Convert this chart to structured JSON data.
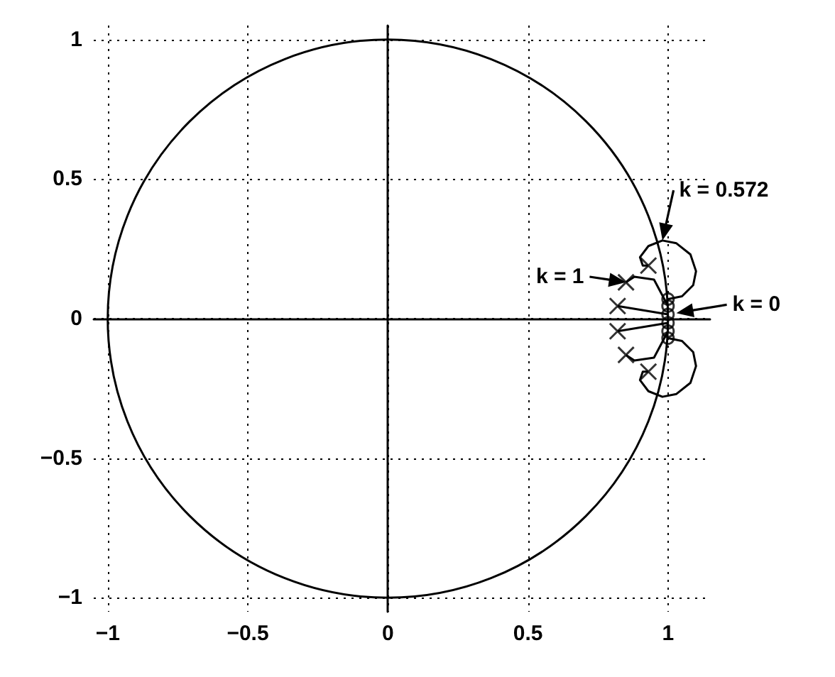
{
  "chart_data": {
    "type": "line",
    "xlim": [
      -1.05,
      1.15
    ],
    "ylim": [
      -1.05,
      1.05
    ],
    "xticks": [
      -1,
      -0.5,
      0,
      0.5,
      1
    ],
    "yticks": [
      -1,
      -0.5,
      0,
      0.5,
      1
    ],
    "grid": true,
    "annotations": [
      {
        "text": "k = 0.572",
        "x": 0.98,
        "y": 0.28
      },
      {
        "text": "k = 1",
        "x": 0.85,
        "y": 0.13
      },
      {
        "text": "k = 0",
        "x": 1.03,
        "y": 0.02
      }
    ],
    "series": [
      {
        "type": "line",
        "marker": "none",
        "color": "#000000",
        "x": [
          1,
          1.05,
          1.09,
          1.1,
          1.08,
          1.03,
          0.98,
          0.93,
          0.9,
          0.91,
          0.93
        ],
        "values": [
          0.07,
          0.08,
          0.12,
          0.17,
          0.23,
          0.27,
          0.28,
          0.26,
          0.22,
          0.19,
          0.19
        ]
      },
      {
        "type": "line",
        "marker": "none",
        "color": "#000000",
        "x": [
          1,
          0.95,
          0.88,
          0.85
        ],
        "values": [
          0.045,
          0.14,
          0.15,
          0.13
        ]
      },
      {
        "marker": "none",
        "color": "#000000",
        "x": [
          1,
          0.82
        ],
        "values": [
          0.015,
          0.045
        ]
      },
      {
        "marker": "none",
        "color": "#000000",
        "x": [
          1,
          0.82
        ],
        "values": [
          -0.015,
          -0.045
        ]
      },
      {
        "marker": "none",
        "color": "#000000",
        "x": [
          1,
          0.95,
          0.88,
          0.85
        ],
        "values": [
          -0.045,
          -0.14,
          -0.15,
          -0.13
        ]
      },
      {
        "type": "line",
        "marker": "none",
        "color": "#000000",
        "x": [
          1,
          1.05,
          1.09,
          1.1,
          1.08,
          1.03,
          0.98,
          0.93,
          0.9,
          0.91,
          0.93
        ],
        "values": [
          -0.07,
          -0.08,
          -0.12,
          -0.17,
          -0.23,
          -0.27,
          -0.28,
          -0.26,
          -0.22,
          -0.19,
          -0.19
        ]
      },
      {
        "type": "scatter",
        "marker": "cross",
        "color": "#000000",
        "x": [
          0.93,
          0.85,
          0.82,
          0.82,
          0.85,
          0.93
        ],
        "values": [
          0.19,
          0.13,
          0.045,
          -0.045,
          -0.13,
          -0.19
        ]
      },
      {
        "type": "scatter",
        "marker": "circle",
        "color": "#000000",
        "x": [
          1,
          1,
          1,
          1,
          1,
          1
        ],
        "values": [
          0.07,
          0.045,
          0.015,
          -0.015,
          -0.045,
          -0.07
        ]
      }
    ]
  }
}
